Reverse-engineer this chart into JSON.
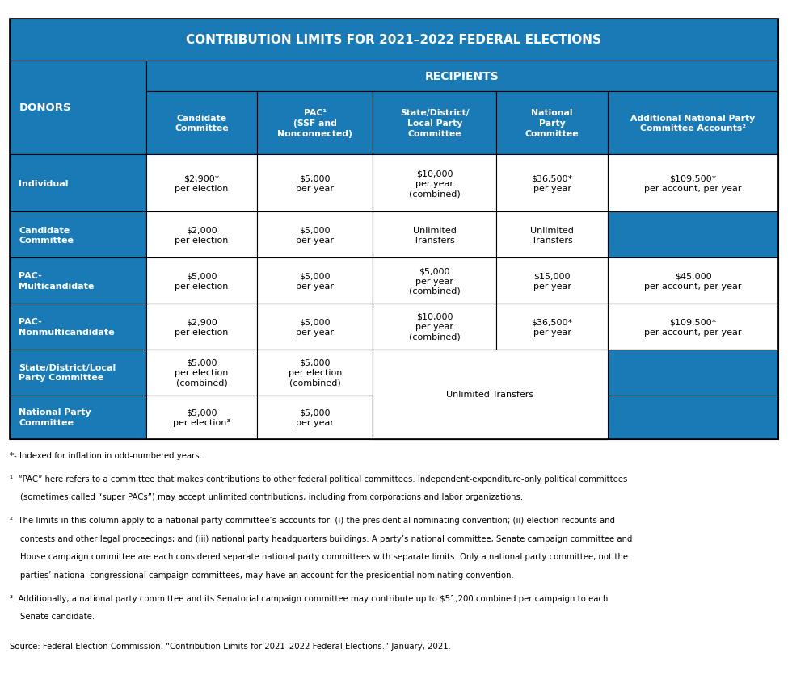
{
  "title": "CONTRIBUTION LIMITS FOR 2021–2022 FEDERAL ELECTIONS",
  "header_bg": "#1a7ab5",
  "header_text": "#ffffff",
  "cell_bg": "#ffffff",
  "cell_text": "#000000",
  "border_color": "#000000",
  "col_span_header": "RECIPIENTS",
  "col_headers": [
    "Candidate\nCommittee",
    "PAC¹\n(SSF and\nNonconnected)",
    "State/District/\nLocal Party\nCommittee",
    "National\nParty\nCommittee",
    "Additional National Party\nCommittee Accounts²"
  ],
  "row_headers": [
    "Individual",
    "Candidate\nCommittee",
    "PAC-\nMulticandidate",
    "PAC-\nNonmulticandidate",
    "State/District/Local\nParty Committee",
    "National Party\nCommittee"
  ],
  "cells": [
    [
      "$2,900*\nper election",
      "$5,000\nper year",
      "$10,000\nper year\n(combined)",
      "$36,500*\nper year",
      "$109,500*\nper account, per year"
    ],
    [
      "$2,000\nper election",
      "$5,000\nper year",
      "Unlimited\nTransfers",
      "Unlimited\nTransfers",
      "blue"
    ],
    [
      "$5,000\nper election",
      "$5,000\nper year",
      "$5,000\nper year\n(combined)",
      "$15,000\nper year",
      "$45,000\nper account, per year"
    ],
    [
      "$2,900\nper election",
      "$5,000\nper year",
      "$10,000\nper year\n(combined)",
      "$36,500*\nper year",
      "$109,500*\nper account, per year"
    ],
    [
      "$5,000\nper election\n(combined)",
      "$5,000\nper election\n(combined)",
      "merged_unlimited",
      "merged_unlimited",
      "blue"
    ],
    [
      "$5,000\nper election³",
      "$5,000\nper year",
      "blue",
      "blue",
      "blue"
    ]
  ],
  "fn_star": "*- Indexed for inflation in odd-numbered years.",
  "fn1": "¹  “PAC” here refers to a committee that makes contributions to other federal political committees. Independent-expenditure-only political committees (sometimes called “super PACs”) may accept unlimited contributions, including from corporations and labor organizations.",
  "fn2": "²  The limits in this column apply to a national party committee’s accounts for: (i) the presidential nominating convention; (ii) election recounts and contests and other legal proceedings; and (iii) national party headquarters buildings. A party’s national committee, Senate campaign committee and House campaign committee are each considered separate national party committees with separate limits. Only a national party committee, not the parties’ national congressional campaign committees, may have an account for the presidential nominating convention.",
  "fn3": "³  Additionally, a national party committee and its Senatorial campaign committee may contribute up to $51,200 combined per campaign to each Senate candidate.",
  "fn_source": "Source: Federal Election Commission. “Contribution Limits for 2021–2022 Federal Elections.” January, 2021."
}
